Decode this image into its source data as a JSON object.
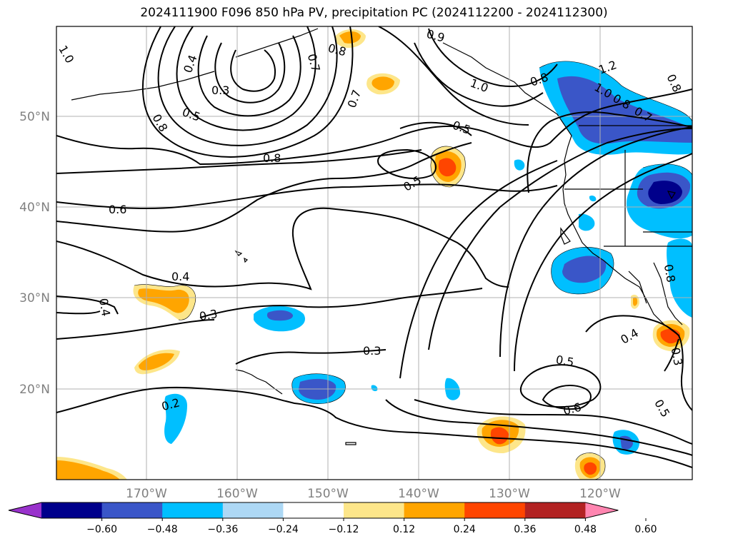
{
  "title": "2024111900 F096 850 hPa PV, precipitation PC (2024112200 - 2024112300)",
  "lat_labels": [
    "50°N",
    "40°N",
    "30°N",
    "20°N"
  ],
  "lon_labels": [
    "170°W",
    "160°W",
    "150°W",
    "140°W",
    "130°W",
    "120°W"
  ],
  "contour_labels": [
    "1.0",
    "0.4",
    "0.3",
    "0.5",
    "0.8",
    "0.8",
    "0.7",
    "0.7",
    "0.9",
    "1.0",
    "0.8",
    "1.2",
    "1.0",
    "0.8",
    "0.7",
    "0.8",
    "0.5",
    "0.5",
    "0.8",
    "0.6",
    "0.4",
    "0.3",
    "0.4",
    "0.3",
    "0.2",
    "0.5",
    "0.6",
    "0.4",
    "0.8",
    "0.3",
    "0.5"
  ],
  "colorbar": {
    "tick_labels": [
      "−0.60",
      "−0.48",
      "−0.36",
      "−0.24",
      "−0.12",
      "0.12",
      "0.24",
      "0.36",
      "0.48",
      "0.60"
    ],
    "colors": [
      "#9932cc",
      "#00008b",
      "#3a56c8",
      "#00bfff",
      "#add8f5",
      "#ffffff",
      "#fde68a",
      "#ffa500",
      "#ff4500",
      "#b22222",
      "#ff85b0"
    ]
  },
  "colors": {
    "contour": "#000000",
    "grid": "#b0b0b0",
    "axis_labels": "#808080"
  }
}
